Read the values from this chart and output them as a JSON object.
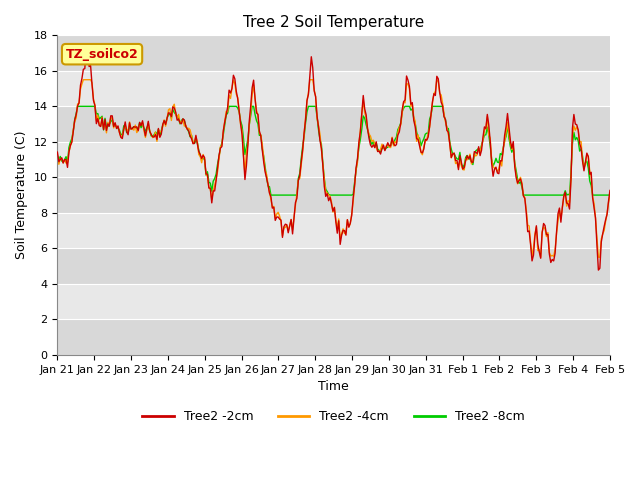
{
  "title": "Tree 2 Soil Temperature",
  "xlabel": "Time",
  "ylabel": "Soil Temperature (C)",
  "ylim": [
    0,
    18
  ],
  "yticks": [
    0,
    2,
    4,
    6,
    8,
    10,
    12,
    14,
    16,
    18
  ],
  "xtick_labels": [
    "Jan 21",
    "Jan 22",
    "Jan 23",
    "Jan 24",
    "Jan 25",
    "Jan 26",
    "Jan 27",
    "Jan 28",
    "Jan 29",
    "Jan 30",
    "Jan 31",
    "Feb 1",
    "Feb 2",
    "Feb 3",
    "Feb 4",
    "Feb 5"
  ],
  "legend_labels": [
    "Tree2 -2cm",
    "Tree2 -4cm",
    "Tree2 -8cm"
  ],
  "line_colors": [
    "#cc0000",
    "#ff9900",
    "#00cc00"
  ],
  "annotation_text": "TZ_soilco2",
  "annotation_bg": "#ffff99",
  "annotation_border": "#cc9900",
  "bg_color": "#ffffff",
  "plot_bg_color": "#e8e8e8",
  "grid_color": "#ffffff",
  "title_fontsize": 11,
  "label_fontsize": 9,
  "tick_fontsize": 8,
  "line_width": 1.0,
  "n_points": 384
}
